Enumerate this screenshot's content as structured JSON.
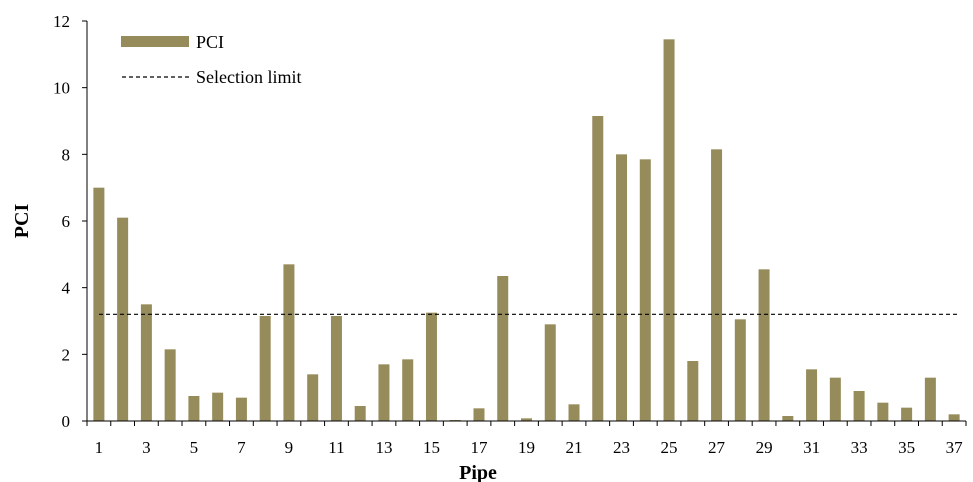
{
  "chart_data": {
    "type": "bar",
    "title": "",
    "xlabel": "Pipe",
    "ylabel": "PCI",
    "ylim": [
      0,
      12
    ],
    "yticks": [
      0,
      2,
      4,
      6,
      8,
      10,
      12
    ],
    "x_tick_labels": [
      "1",
      "3",
      "5",
      "7",
      "9",
      "11",
      "13",
      "15",
      "17",
      "19",
      "21",
      "23",
      "25",
      "27",
      "29",
      "31",
      "33",
      "35",
      "37"
    ],
    "categories": [
      1,
      2,
      3,
      4,
      5,
      6,
      7,
      8,
      9,
      10,
      11,
      12,
      13,
      14,
      15,
      16,
      17,
      18,
      19,
      20,
      21,
      22,
      23,
      24,
      25,
      26,
      27,
      28,
      29,
      30,
      31,
      32,
      33,
      34,
      35,
      36,
      37
    ],
    "series": [
      {
        "name": "PCI",
        "color": "#968b5a",
        "values": [
          7.0,
          6.1,
          3.5,
          2.15,
          0.75,
          0.85,
          0.7,
          3.15,
          4.7,
          1.4,
          3.15,
          0.45,
          1.7,
          1.85,
          3.25,
          0.03,
          0.38,
          4.35,
          0.08,
          2.9,
          0.5,
          9.15,
          8.0,
          7.85,
          11.45,
          1.8,
          8.15,
          3.05,
          4.55,
          0.15,
          1.55,
          1.3,
          0.9,
          0.55,
          0.4,
          1.3,
          0.2
        ]
      }
    ],
    "reference_lines": [
      {
        "name": "Selection limit",
        "value": 3.2,
        "style": "dashed",
        "color": "#000000"
      }
    ],
    "legend": {
      "placement": "top-left"
    }
  }
}
